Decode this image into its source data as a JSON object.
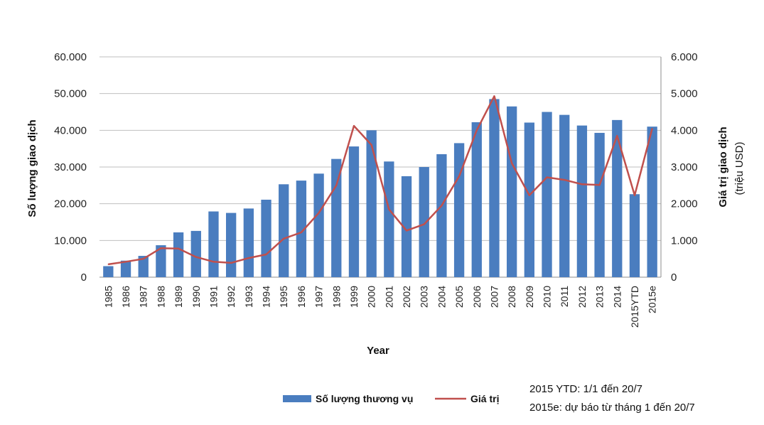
{
  "chart_data": {
    "type": "bar+line",
    "xlabel": "Year",
    "ylabel_left": "Số lượng giao dịch",
    "ylabel_right": "Giá trị giao dịch",
    "ylabel_right_sub": "(triệu USD)",
    "ylim_left": [
      0,
      60000
    ],
    "ylim_right": [
      0,
      6000
    ],
    "left_ticks": [
      "0",
      "10.000",
      "20.000",
      "30.000",
      "40.000",
      "50.000",
      "60.000"
    ],
    "right_ticks": [
      "0",
      "1.000",
      "2.000",
      "3.000",
      "4.000",
      "5.000",
      "6.000"
    ],
    "grid": true,
    "legend_position": "bottom",
    "categories": [
      "1985",
      "1986",
      "1987",
      "1988",
      "1989",
      "1990",
      "1991",
      "1992",
      "1993",
      "1994",
      "1995",
      "1996",
      "1997",
      "1998",
      "1999",
      "2000",
      "2001",
      "2002",
      "2003",
      "2004",
      "2005",
      "2006",
      "2007",
      "2008",
      "2009",
      "2010",
      "2011",
      "2012",
      "2013",
      "2014",
      "2015YTD",
      "2015e"
    ],
    "series": [
      {
        "name": "Số lượng thương vụ",
        "type": "bar",
        "axis": "left",
        "color": "#4a7dbf",
        "values": [
          3000,
          4500,
          5800,
          8700,
          12200,
          12600,
          17900,
          17500,
          18700,
          21100,
          25300,
          26300,
          28200,
          32200,
          35600,
          40000,
          31500,
          27500,
          30000,
          33500,
          36500,
          42200,
          48500,
          46500,
          42100,
          45000,
          44200,
          41300,
          39300,
          42800,
          22600,
          41000
        ]
      },
      {
        "name": "Giá trị",
        "type": "line",
        "axis": "right",
        "color": "#c0504d",
        "values": [
          350,
          420,
          500,
          790,
          780,
          550,
          420,
          390,
          520,
          620,
          1050,
          1220,
          1750,
          2500,
          4120,
          3600,
          1850,
          1270,
          1440,
          1950,
          2750,
          4000,
          4930,
          3100,
          2230,
          2720,
          2650,
          2530,
          2510,
          3850,
          2230,
          4050
        ]
      }
    ],
    "notes": [
      "2015 YTD: 1/1 đến 20/7",
      "2015e: dự báo từ tháng 1 đến 20/7"
    ]
  }
}
